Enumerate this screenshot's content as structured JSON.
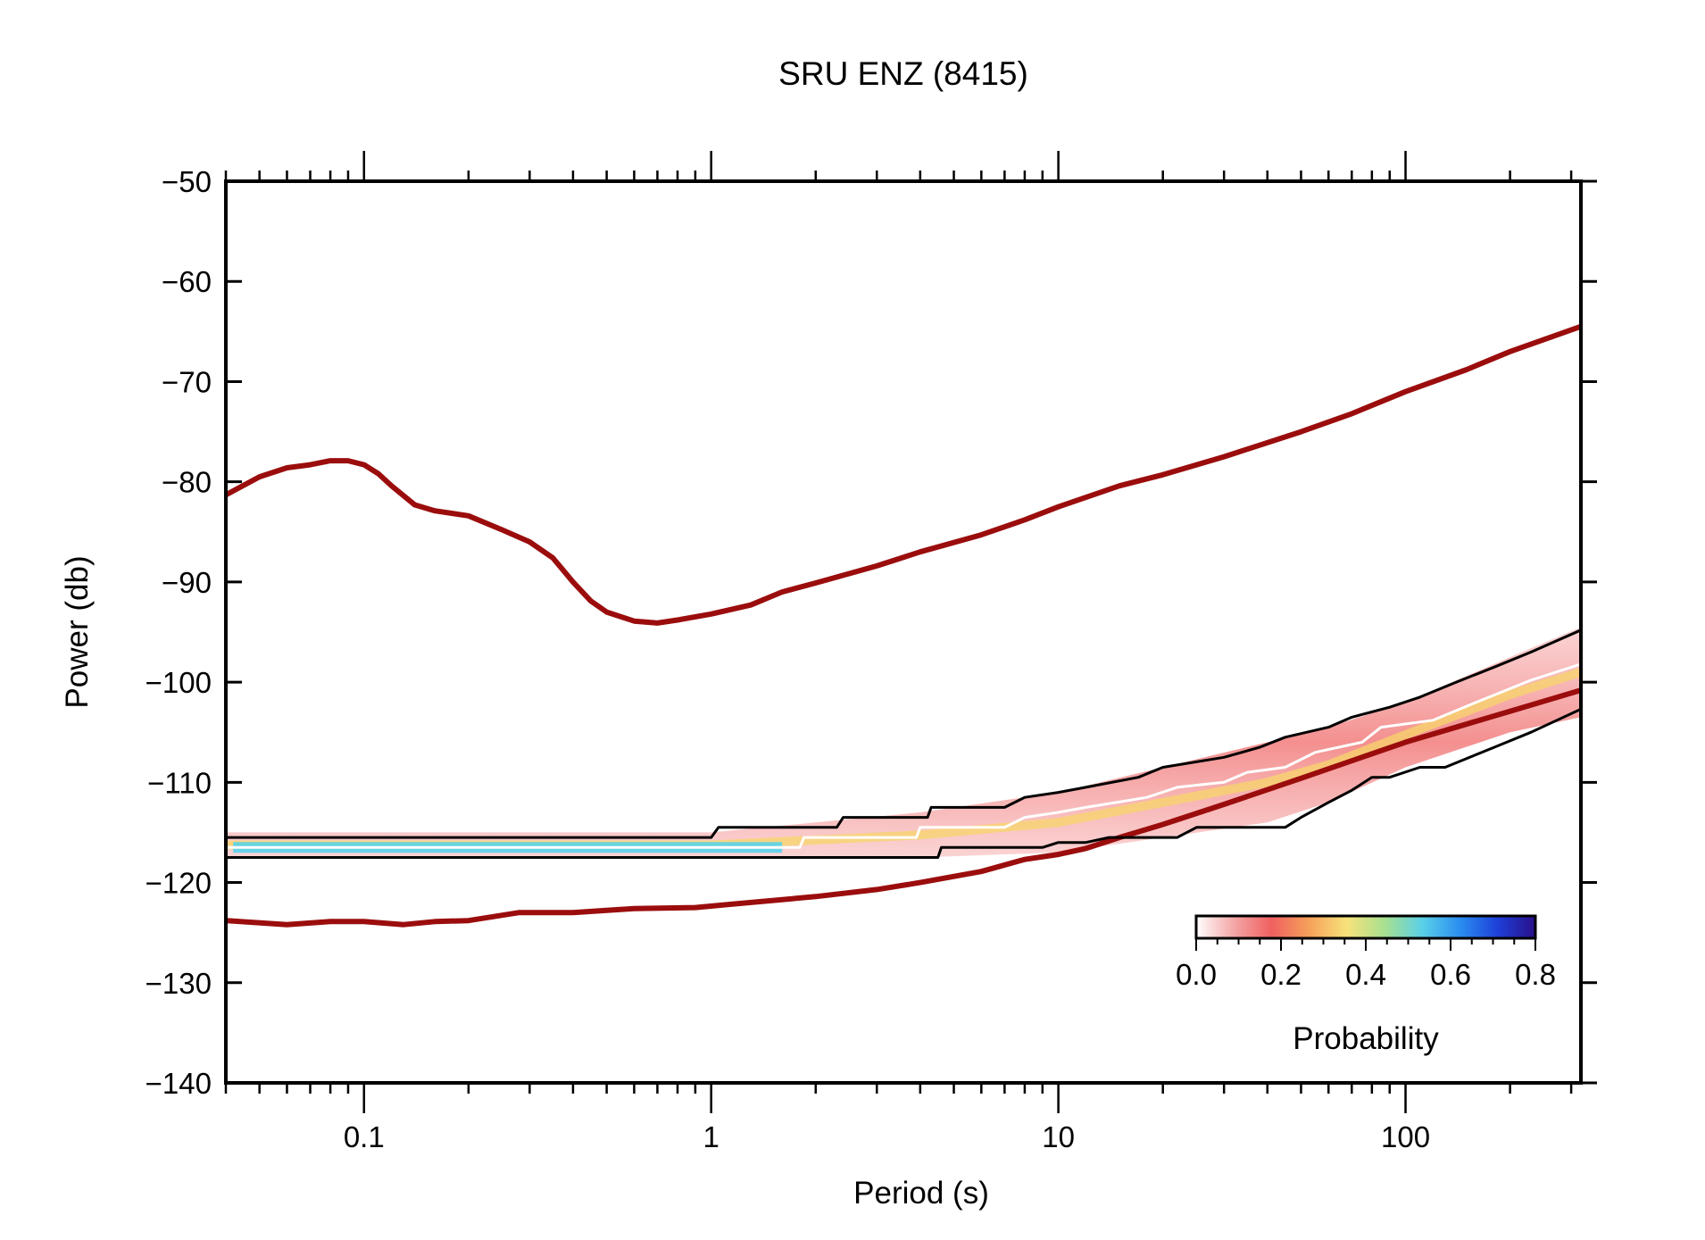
{
  "chart_data": {
    "type": "line",
    "title": "SRU ENZ (8415)",
    "xlabel": "Period (s)",
    "ylabel": "Power (db)",
    "x_scale": "log",
    "xlim": [
      0.04,
      320
    ],
    "ylim": [
      -140,
      -50
    ],
    "x_ticks": [
      {
        "value": 0.1,
        "label": "0.1"
      },
      {
        "value": 1,
        "label": "1"
      },
      {
        "value": 10,
        "label": "10"
      },
      {
        "value": 100,
        "label": "100"
      }
    ],
    "y_ticks": [
      {
        "value": -50,
        "label": "−50"
      },
      {
        "value": -60,
        "label": "−60"
      },
      {
        "value": -70,
        "label": "−70"
      },
      {
        "value": -80,
        "label": "−80"
      },
      {
        "value": -90,
        "label": "−90"
      },
      {
        "value": -100,
        "label": "−100"
      },
      {
        "value": -110,
        "label": "−110"
      },
      {
        "value": -120,
        "label": "−120"
      },
      {
        "value": -130,
        "label": "−130"
      },
      {
        "value": -140,
        "label": "−140"
      }
    ],
    "grid": false,
    "series": [
      {
        "color": "#9b0d0d",
        "points": [
          [
            0.04,
            -81.3
          ],
          [
            0.05,
            -79.5
          ],
          [
            0.06,
            -78.6
          ],
          [
            0.07,
            -78.3
          ],
          [
            0.08,
            -77.9
          ],
          [
            0.09,
            -77.9
          ],
          [
            0.1,
            -78.3
          ],
          [
            0.11,
            -79.2
          ],
          [
            0.12,
            -80.4
          ],
          [
            0.14,
            -82.3
          ],
          [
            0.16,
            -82.9
          ],
          [
            0.2,
            -83.4
          ],
          [
            0.25,
            -84.8
          ],
          [
            0.3,
            -86.0
          ],
          [
            0.35,
            -87.6
          ],
          [
            0.4,
            -90.0
          ],
          [
            0.45,
            -91.9
          ],
          [
            0.5,
            -93.0
          ],
          [
            0.6,
            -93.9
          ],
          [
            0.7,
            -94.1
          ],
          [
            0.8,
            -93.8
          ],
          [
            1.0,
            -93.2
          ],
          [
            1.3,
            -92.3
          ],
          [
            1.6,
            -91.0
          ],
          [
            2.0,
            -90.1
          ],
          [
            3.0,
            -88.4
          ],
          [
            4.0,
            -87.0
          ],
          [
            6.0,
            -85.3
          ],
          [
            8.0,
            -83.8
          ],
          [
            10.0,
            -82.5
          ],
          [
            15.0,
            -80.4
          ],
          [
            20.0,
            -79.3
          ],
          [
            30.0,
            -77.5
          ],
          [
            50.0,
            -75.0
          ],
          [
            70.0,
            -73.2
          ],
          [
            100.0,
            -71.0
          ],
          [
            150.0,
            -68.8
          ],
          [
            200.0,
            -67.0
          ],
          [
            320.0,
            -64.5
          ]
        ]
      },
      {
        "color": "#9b0d0d",
        "points": [
          [
            0.04,
            -123.8
          ],
          [
            0.06,
            -124.2
          ],
          [
            0.08,
            -123.9
          ],
          [
            0.1,
            -123.9
          ],
          [
            0.13,
            -124.2
          ],
          [
            0.16,
            -123.9
          ],
          [
            0.2,
            -123.8
          ],
          [
            0.28,
            -123.0
          ],
          [
            0.4,
            -123.0
          ],
          [
            0.6,
            -122.6
          ],
          [
            0.9,
            -122.5
          ],
          [
            1.2,
            -122.1
          ],
          [
            2.0,
            -121.4
          ],
          [
            3.0,
            -120.7
          ],
          [
            4.0,
            -120.0
          ],
          [
            6.0,
            -118.9
          ],
          [
            8.0,
            -117.7
          ],
          [
            10.0,
            -117.2
          ],
          [
            12.0,
            -116.6
          ],
          [
            15.0,
            -115.5
          ],
          [
            20.0,
            -114.2
          ],
          [
            30.0,
            -112.2
          ],
          [
            50.0,
            -109.6
          ],
          [
            100.0,
            -106.0
          ],
          [
            200.0,
            -102.9
          ],
          [
            320.0,
            -100.8
          ]
        ]
      },
      {
        "color": "#000000",
        "points": [
          [
            0.04,
            -115.5
          ],
          [
            1.0,
            -115.5
          ],
          [
            1.05,
            -114.5
          ],
          [
            2.3,
            -114.5
          ],
          [
            2.4,
            -113.5
          ],
          [
            4.2,
            -113.5
          ],
          [
            4.3,
            -112.5
          ],
          [
            7.0,
            -112.5
          ],
          [
            8.0,
            -111.5
          ],
          [
            10.0,
            -111.0
          ],
          [
            12.0,
            -110.5
          ],
          [
            17.0,
            -109.5
          ],
          [
            20.0,
            -108.5
          ],
          [
            30.0,
            -107.5
          ],
          [
            38.0,
            -106.5
          ],
          [
            45.0,
            -105.5
          ],
          [
            60.0,
            -104.5
          ],
          [
            70.0,
            -103.5
          ],
          [
            90.0,
            -102.5
          ],
          [
            110.0,
            -101.5
          ],
          [
            140.0,
            -100.0
          ],
          [
            180.0,
            -98.5
          ],
          [
            230.0,
            -97.0
          ],
          [
            320.0,
            -94.8
          ]
        ]
      },
      {
        "color": "#000000",
        "points": [
          [
            0.04,
            -117.5
          ],
          [
            4.5,
            -117.5
          ],
          [
            4.6,
            -116.5
          ],
          [
            9.0,
            -116.5
          ],
          [
            10.0,
            -116.0
          ],
          [
            12.0,
            -116.0
          ],
          [
            14.0,
            -115.5
          ],
          [
            22.0,
            -115.5
          ],
          [
            25.0,
            -114.5
          ],
          [
            45.0,
            -114.5
          ],
          [
            50.0,
            -113.5
          ],
          [
            60.0,
            -112.0
          ],
          [
            70.0,
            -110.8
          ],
          [
            80.0,
            -109.5
          ],
          [
            90.0,
            -109.5
          ],
          [
            110.0,
            -108.5
          ],
          [
            130.0,
            -108.5
          ],
          [
            180.0,
            -106.5
          ],
          [
            230.0,
            -105.0
          ],
          [
            320.0,
            -102.7
          ]
        ]
      },
      {
        "color": "#ffffff",
        "points": [
          [
            0.04,
            -116.5
          ],
          [
            1.8,
            -116.5
          ],
          [
            1.85,
            -115.5
          ],
          [
            3.9,
            -115.5
          ],
          [
            4.0,
            -114.5
          ],
          [
            7.0,
            -114.5
          ],
          [
            8.0,
            -113.5
          ],
          [
            10.0,
            -113.0
          ],
          [
            12.0,
            -112.5
          ],
          [
            18.0,
            -111.5
          ],
          [
            22.0,
            -110.5
          ],
          [
            30.0,
            -110.0
          ],
          [
            35.0,
            -109.0
          ],
          [
            45.0,
            -108.5
          ],
          [
            55.0,
            -107.0
          ],
          [
            75.0,
            -106.0
          ],
          [
            85.0,
            -104.5
          ],
          [
            120.0,
            -103.8
          ],
          [
            160.0,
            -102.0
          ],
          [
            230.0,
            -99.8
          ],
          [
            320.0,
            -98.2
          ]
        ]
      }
    ],
    "density_band": {
      "lower": [
        [
          0.04,
          -117.5
        ],
        [
          1.0,
          -117.5
        ],
        [
          4.0,
          -117.5
        ],
        [
          10.0,
          -117.0
        ],
        [
          20.0,
          -115.5
        ],
        [
          40.0,
          -114.0
        ],
        [
          60.0,
          -112.0
        ],
        [
          100.0,
          -108.5
        ],
        [
          200.0,
          -105.0
        ],
        [
          320.0,
          -103.5
        ]
      ],
      "upper": [
        [
          0.04,
          -115.0
        ],
        [
          1.0,
          -115.0
        ],
        [
          4.0,
          -113.0
        ],
        [
          10.0,
          -111.0
        ],
        [
          20.0,
          -108.5
        ],
        [
          40.0,
          -106.0
        ],
        [
          60.0,
          -104.5
        ],
        [
          100.0,
          -102.0
        ],
        [
          200.0,
          -97.5
        ],
        [
          320.0,
          -94.5
        ]
      ]
    },
    "colorbar": {
      "label": "Probability",
      "ticks": [
        "0.0",
        "0.2",
        "0.4",
        "0.6",
        "0.8"
      ],
      "range": [
        0.0,
        0.8
      ],
      "colors": [
        "#ffffff",
        "#f4a6a6",
        "#f06060",
        "#f5a15a",
        "#f7e27a",
        "#a8e090",
        "#5ad0e8",
        "#2a8ef0",
        "#1e3fd8",
        "#2a0f8a"
      ]
    }
  }
}
